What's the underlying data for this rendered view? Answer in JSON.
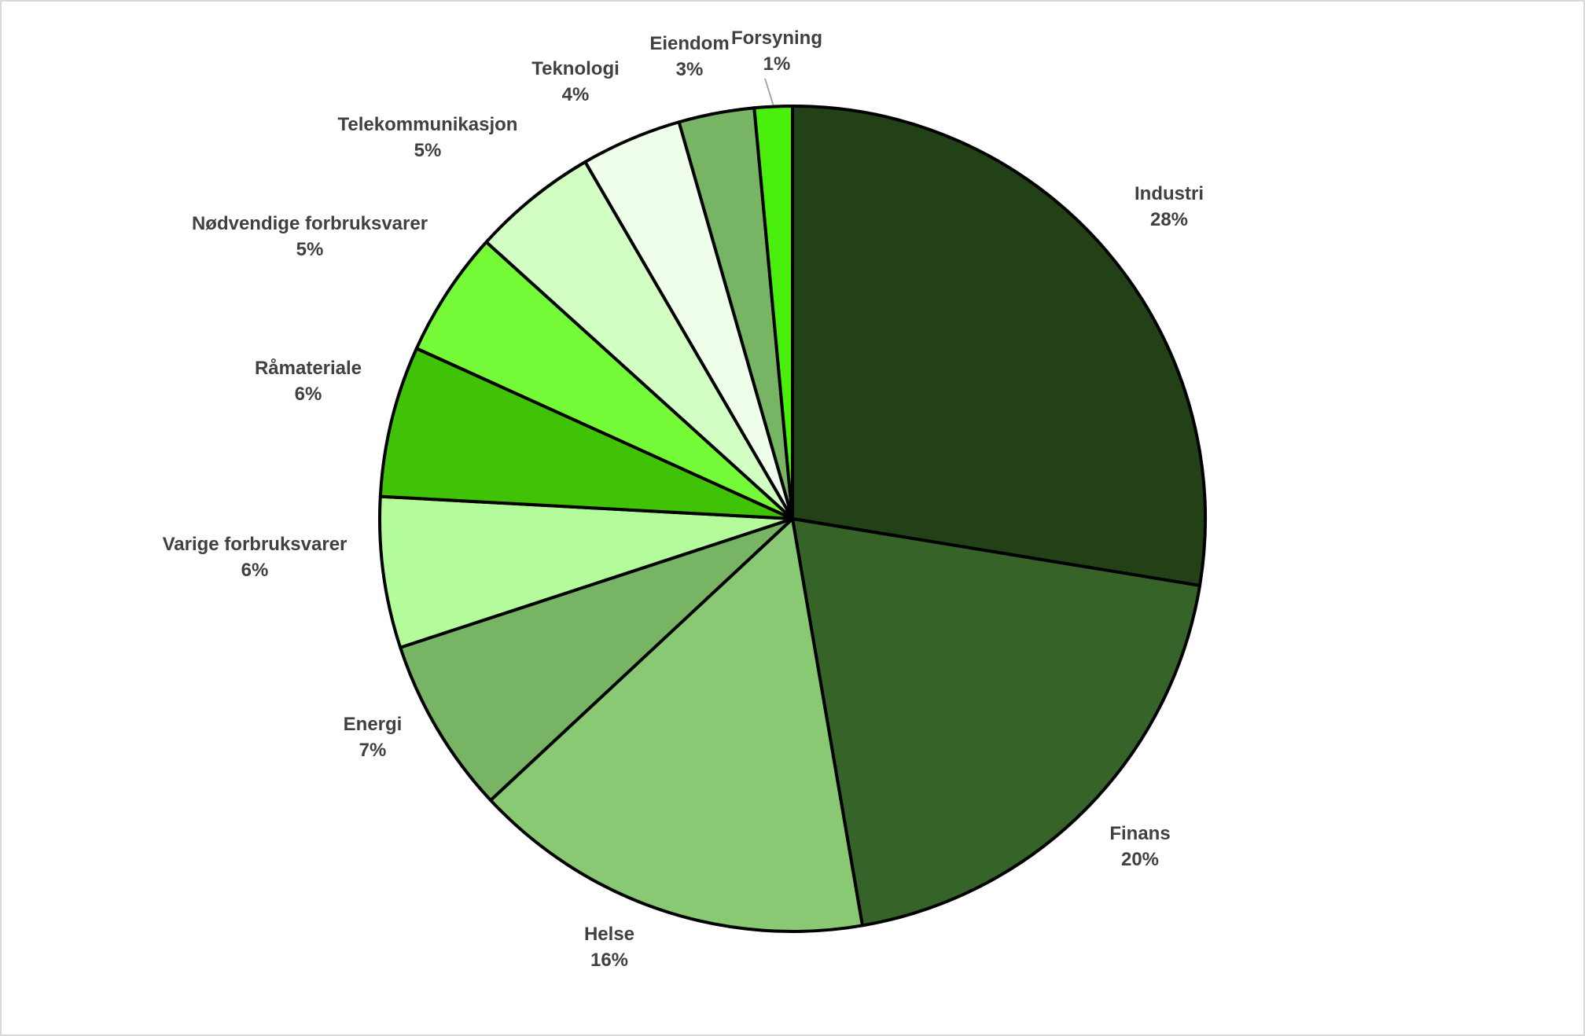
{
  "chart_data": {
    "type": "pie",
    "title": "",
    "start_angle_deg": 0,
    "direction": "clockwise",
    "slices": [
      {
        "label": "Industri",
        "value": 28,
        "value_label": "28%",
        "color": "#234116"
      },
      {
        "label": "Finans",
        "value": 20,
        "value_label": "20%",
        "color": "#366328"
      },
      {
        "label": "Helse",
        "value": 16,
        "value_label": "16%",
        "color": "#8ac973"
      },
      {
        "label": "Energi",
        "value": 7,
        "value_label": "7%",
        "color": "#77b564"
      },
      {
        "label": "Varige forbruksvarer",
        "value": 6,
        "value_label": "6%",
        "color": "#b4fb9c"
      },
      {
        "label": "Råmateriale",
        "value": 6,
        "value_label": "6%",
        "color": "#40c206"
      },
      {
        "label": "Nødvendige forbruksvarer",
        "value": 5,
        "value_label": "5%",
        "color": "#75fa38"
      },
      {
        "label": "Telekommunikasjon",
        "value": 5,
        "value_label": "5%",
        "color": "#d2fdc3"
      },
      {
        "label": "Teknologi",
        "value": 4,
        "value_label": "4%",
        "color": "#effeea"
      },
      {
        "label": "Eiendom",
        "value": 3,
        "value_label": "3%",
        "color": "#77b564"
      },
      {
        "label": "Forsyning",
        "value": 1.5,
        "value_label": "1%",
        "color": "#4bef0e"
      }
    ],
    "legend": "none",
    "data_labels": "outside"
  }
}
